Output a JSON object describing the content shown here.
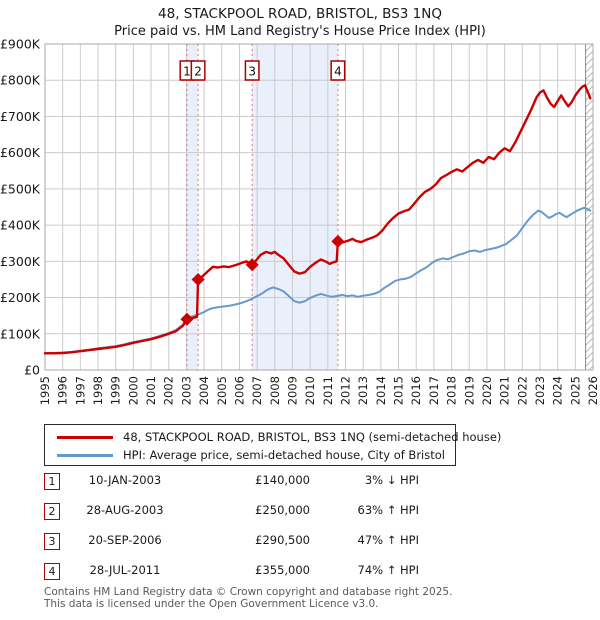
{
  "header": {
    "title": "48, STACKPOOL ROAD, BRISTOL, BS3 1NQ",
    "subtitle": "Price paid vs. HM Land Registry's House Price Index (HPI)"
  },
  "chart_data": {
    "type": "line",
    "title": "48, STACKPOOL ROAD, BRISTOL, BS3 1NQ — Price paid vs. HPI",
    "xlabel": "",
    "ylabel": "",
    "x_range": [
      1995,
      2026
    ],
    "y_range_k": [
      0,
      900
    ],
    "y_ticks": [
      "£0",
      "£100K",
      "£200K",
      "£300K",
      "£400K",
      "£500K",
      "£600K",
      "£700K",
      "£800K",
      "£900K"
    ],
    "x_years": [
      1995,
      1996,
      1997,
      1998,
      1999,
      2000,
      2001,
      2002,
      2003,
      2004,
      2005,
      2006,
      2007,
      2008,
      2009,
      2010,
      2011,
      2012,
      2013,
      2014,
      2015,
      2016,
      2017,
      2018,
      2019,
      2020,
      2021,
      2022,
      2023,
      2024,
      2025,
      2026
    ],
    "grid": true,
    "legend_position": "below",
    "colors": {
      "property": "#cc0000",
      "hpi": "#6699cc",
      "marker_box_border": "#aa0000",
      "transaction_dash": "#e57373",
      "band_fill": "#e9effb",
      "grid": "#cccccc",
      "frame": "#a8a8a8",
      "hatch": "#b9b9c4"
    },
    "bands": [
      [
        2003.03,
        2003.66
      ],
      [
        2006.72,
        2011.57
      ]
    ],
    "hatch_start": 2025.58,
    "series": [
      {
        "name": "48, STACKPOOL ROAD, BRISTOL, BS3 1NQ (semi-detached house)",
        "color": "#cc0000",
        "width": 2.4,
        "points": [
          [
            1995.0,
            46
          ],
          [
            1995.5,
            46
          ],
          [
            1996.0,
            47
          ],
          [
            1996.5,
            49
          ],
          [
            1997.0,
            52
          ],
          [
            1997.5,
            55
          ],
          [
            1998.0,
            58
          ],
          [
            1998.5,
            61
          ],
          [
            1999.0,
            64
          ],
          [
            1999.5,
            69
          ],
          [
            2000.0,
            75
          ],
          [
            2000.5,
            80
          ],
          [
            2001.0,
            85
          ],
          [
            2001.5,
            92
          ],
          [
            2002.0,
            100
          ],
          [
            2002.4,
            107
          ],
          [
            2002.8,
            122
          ],
          [
            2003.03,
            140
          ],
          [
            2003.3,
            143
          ],
          [
            2003.6,
            147
          ],
          [
            2003.66,
            250
          ],
          [
            2003.9,
            258
          ],
          [
            2004.2,
            272
          ],
          [
            2004.5,
            285
          ],
          [
            2004.8,
            283
          ],
          [
            2005.1,
            286
          ],
          [
            2005.4,
            284
          ],
          [
            2005.8,
            290
          ],
          [
            2006.1,
            295
          ],
          [
            2006.4,
            300
          ],
          [
            2006.72,
            290.5
          ],
          [
            2006.9,
            300
          ],
          [
            2007.2,
            318
          ],
          [
            2007.5,
            326
          ],
          [
            2007.8,
            322
          ],
          [
            2008.0,
            326
          ],
          [
            2008.2,
            318
          ],
          [
            2008.5,
            308
          ],
          [
            2008.8,
            290
          ],
          [
            2009.1,
            272
          ],
          [
            2009.4,
            266
          ],
          [
            2009.7,
            270
          ],
          [
            2010.0,
            285
          ],
          [
            2010.3,
            296
          ],
          [
            2010.6,
            305
          ],
          [
            2010.9,
            299
          ],
          [
            2011.1,
            293
          ],
          [
            2011.3,
            297
          ],
          [
            2011.5,
            300
          ],
          [
            2011.57,
            355
          ],
          [
            2011.8,
            352
          ],
          [
            2012.1,
            356
          ],
          [
            2012.4,
            362
          ],
          [
            2012.6,
            356
          ],
          [
            2012.9,
            353
          ],
          [
            2013.2,
            360
          ],
          [
            2013.5,
            365
          ],
          [
            2013.8,
            372
          ],
          [
            2014.1,
            386
          ],
          [
            2014.4,
            405
          ],
          [
            2014.7,
            420
          ],
          [
            2015.0,
            432
          ],
          [
            2015.3,
            438
          ],
          [
            2015.6,
            443
          ],
          [
            2015.9,
            460
          ],
          [
            2016.2,
            478
          ],
          [
            2016.5,
            492
          ],
          [
            2016.8,
            500
          ],
          [
            2017.1,
            512
          ],
          [
            2017.4,
            530
          ],
          [
            2017.7,
            538
          ],
          [
            2018.0,
            547
          ],
          [
            2018.3,
            554
          ],
          [
            2018.6,
            548
          ],
          [
            2018.9,
            560
          ],
          [
            2019.2,
            572
          ],
          [
            2019.5,
            580
          ],
          [
            2019.8,
            572
          ],
          [
            2020.1,
            588
          ],
          [
            2020.4,
            582
          ],
          [
            2020.7,
            600
          ],
          [
            2021.0,
            612
          ],
          [
            2021.3,
            604
          ],
          [
            2021.6,
            628
          ],
          [
            2021.9,
            658
          ],
          [
            2022.2,
            688
          ],
          [
            2022.5,
            718
          ],
          [
            2022.8,
            752
          ],
          [
            2023.0,
            766
          ],
          [
            2023.2,
            772
          ],
          [
            2023.4,
            752
          ],
          [
            2023.6,
            735
          ],
          [
            2023.8,
            726
          ],
          [
            2024.0,
            742
          ],
          [
            2024.2,
            758
          ],
          [
            2024.4,
            742
          ],
          [
            2024.6,
            728
          ],
          [
            2024.8,
            740
          ],
          [
            2025.0,
            758
          ],
          [
            2025.2,
            772
          ],
          [
            2025.4,
            782
          ],
          [
            2025.55,
            786
          ],
          [
            2025.7,
            768
          ],
          [
            2025.85,
            750
          ]
        ]
      },
      {
        "name": "HPI: Average price, semi-detached house, City of Bristol",
        "color": "#6699cc",
        "width": 2,
        "points": [
          [
            1995.0,
            47
          ],
          [
            1995.5,
            47
          ],
          [
            1996.0,
            48
          ],
          [
            1996.5,
            50
          ],
          [
            1997.0,
            53
          ],
          [
            1997.5,
            56
          ],
          [
            1998.0,
            60
          ],
          [
            1998.5,
            63
          ],
          [
            1999.0,
            66
          ],
          [
            1999.5,
            71
          ],
          [
            2000.0,
            77
          ],
          [
            2000.5,
            82
          ],
          [
            2001.0,
            87
          ],
          [
            2001.5,
            94
          ],
          [
            2002.0,
            102
          ],
          [
            2002.4,
            110
          ],
          [
            2002.8,
            125
          ],
          [
            2003.03,
            144
          ],
          [
            2003.4,
            149
          ],
          [
            2003.66,
            153
          ],
          [
            2004.0,
            160
          ],
          [
            2004.3,
            168
          ],
          [
            2004.6,
            172
          ],
          [
            2005.0,
            175
          ],
          [
            2005.4,
            177
          ],
          [
            2005.8,
            181
          ],
          [
            2006.1,
            185
          ],
          [
            2006.4,
            190
          ],
          [
            2006.72,
            197
          ],
          [
            2007.0,
            204
          ],
          [
            2007.3,
            212
          ],
          [
            2007.6,
            222
          ],
          [
            2007.9,
            228
          ],
          [
            2008.2,
            224
          ],
          [
            2008.5,
            217
          ],
          [
            2008.8,
            204
          ],
          [
            2009.1,
            190
          ],
          [
            2009.4,
            186
          ],
          [
            2009.7,
            190
          ],
          [
            2010.0,
            199
          ],
          [
            2010.3,
            205
          ],
          [
            2010.6,
            210
          ],
          [
            2010.9,
            206
          ],
          [
            2011.2,
            202
          ],
          [
            2011.5,
            204
          ],
          [
            2011.8,
            207
          ],
          [
            2012.1,
            204
          ],
          [
            2012.4,
            206
          ],
          [
            2012.7,
            202
          ],
          [
            2013.0,
            205
          ],
          [
            2013.3,
            207
          ],
          [
            2013.6,
            210
          ],
          [
            2013.9,
            216
          ],
          [
            2014.2,
            227
          ],
          [
            2014.5,
            236
          ],
          [
            2014.8,
            246
          ],
          [
            2015.1,
            250
          ],
          [
            2015.4,
            252
          ],
          [
            2015.7,
            257
          ],
          [
            2016.0,
            267
          ],
          [
            2016.3,
            276
          ],
          [
            2016.6,
            284
          ],
          [
            2016.9,
            296
          ],
          [
            2017.2,
            304
          ],
          [
            2017.5,
            308
          ],
          [
            2017.8,
            306
          ],
          [
            2018.1,
            312
          ],
          [
            2018.4,
            318
          ],
          [
            2018.7,
            322
          ],
          [
            2019.0,
            328
          ],
          [
            2019.3,
            330
          ],
          [
            2019.6,
            326
          ],
          [
            2019.9,
            331
          ],
          [
            2020.2,
            334
          ],
          [
            2020.5,
            337
          ],
          [
            2020.8,
            342
          ],
          [
            2021.1,
            348
          ],
          [
            2021.4,
            360
          ],
          [
            2021.7,
            372
          ],
          [
            2022.0,
            392
          ],
          [
            2022.3,
            412
          ],
          [
            2022.6,
            428
          ],
          [
            2022.9,
            440
          ],
          [
            2023.1,
            436
          ],
          [
            2023.3,
            428
          ],
          [
            2023.5,
            420
          ],
          [
            2023.7,
            424
          ],
          [
            2023.9,
            430
          ],
          [
            2024.1,
            434
          ],
          [
            2024.3,
            428
          ],
          [
            2024.5,
            422
          ],
          [
            2024.7,
            428
          ],
          [
            2024.9,
            434
          ],
          [
            2025.1,
            440
          ],
          [
            2025.3,
            444
          ],
          [
            2025.5,
            448
          ],
          [
            2025.7,
            444
          ],
          [
            2025.85,
            440
          ]
        ]
      }
    ],
    "transactions": [
      {
        "num": "1",
        "year": 2003.03,
        "price_k": 140,
        "date": "10-JAN-2003",
        "price": "£140,000",
        "hpi_relation": "3% ↓ HPI"
      },
      {
        "num": "2",
        "year": 2003.66,
        "price_k": 250,
        "date": "28-AUG-2003",
        "price": "£250,000",
        "hpi_relation": "63% ↑ HPI"
      },
      {
        "num": "3",
        "year": 2006.72,
        "price_k": 290.5,
        "date": "20-SEP-2006",
        "price": "£290,500",
        "hpi_relation": "47% ↑ HPI"
      },
      {
        "num": "4",
        "year": 2011.57,
        "price_k": 355,
        "date": "28-JUL-2011",
        "price": "£355,000",
        "hpi_relation": "74% ↑ HPI"
      }
    ]
  },
  "legend": {
    "items": [
      {
        "label": "48, STACKPOOL ROAD, BRISTOL, BS3 1NQ (semi-detached house)",
        "color": "#cc0000"
      },
      {
        "label": "HPI: Average price, semi-detached house, City of Bristol",
        "color": "#6699cc"
      }
    ]
  },
  "table": {
    "rows": [
      {
        "num": "1",
        "date": "10-JAN-2003",
        "price": "£140,000",
        "hpi_relation": "3% ↓ HPI"
      },
      {
        "num": "2",
        "date": "28-AUG-2003",
        "price": "£250,000",
        "hpi_relation": "63% ↑ HPI"
      },
      {
        "num": "3",
        "date": "20-SEP-2006",
        "price": "£290,500",
        "hpi_relation": "47% ↑ HPI"
      },
      {
        "num": "4",
        "date": "28-JUL-2011",
        "price": "£355,000",
        "hpi_relation": "74% ↑ HPI"
      }
    ]
  },
  "footer": {
    "line1": "Contains HM Land Registry data © Crown copyright and database right 2025.",
    "line2": "This data is licensed under the Open Government Licence v3.0."
  }
}
